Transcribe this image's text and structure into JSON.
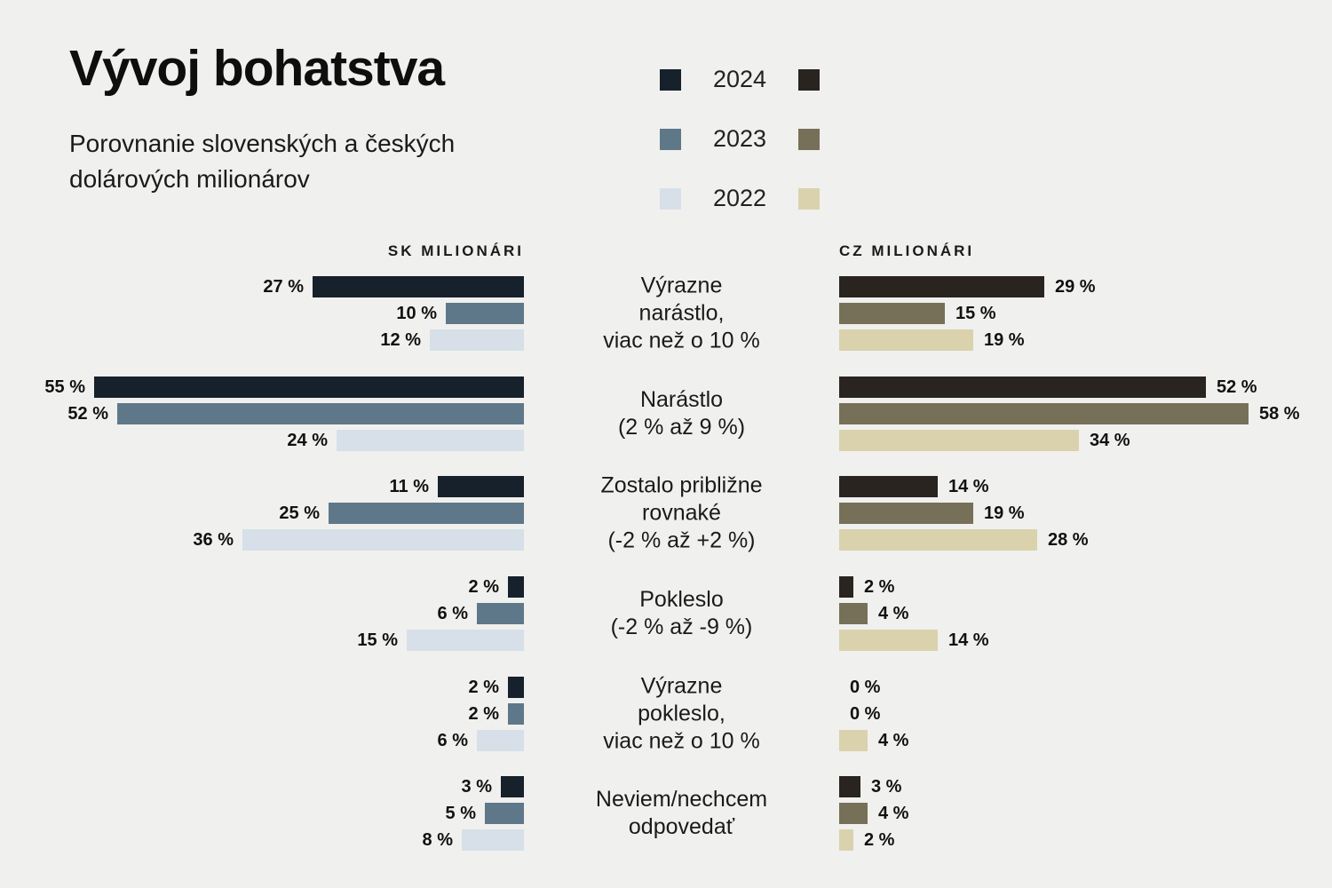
{
  "title": "Vývoj bohatstva",
  "subtitle": "Porovnanie slovenských a českých dolárových milionárov",
  "legend": {
    "years": [
      "2024",
      "2023",
      "2022"
    ]
  },
  "columns": {
    "sk": "SK MILIONÁRI",
    "cz": "CZ MILIONÁRI"
  },
  "colors": {
    "background": "#f0f0ee",
    "text": "#1a1a1a",
    "sk": {
      "2024": "#16212b",
      "2023": "#5f7889",
      "2022": "#d7e0e8"
    },
    "cz": {
      "2024": "#292420",
      "2023": "#777058",
      "2022": "#dad2ad"
    }
  },
  "groups": [
    {
      "lines": [
        "Výrazne",
        "narástlo,",
        "viac než o 10 %"
      ],
      "sk": [
        {
          "year": "2024",
          "value": 27,
          "label": "27 %"
        },
        {
          "year": "2023",
          "value": 10,
          "label": "10 %"
        },
        {
          "year": "2022",
          "value": 12,
          "label": "12 %"
        }
      ],
      "cz": [
        {
          "year": "2024",
          "value": 29,
          "label": "29 %"
        },
        {
          "year": "2023",
          "value": 15,
          "label": "15 %"
        },
        {
          "year": "2022",
          "value": 19,
          "label": "19 %"
        }
      ]
    },
    {
      "lines": [
        "Narástlo",
        "(2 % až 9 %)"
      ],
      "sk": [
        {
          "year": "2024",
          "value": 55,
          "label": "55 %"
        },
        {
          "year": "2023",
          "value": 52,
          "label": "52 %"
        },
        {
          "year": "2022",
          "value": 24,
          "label": "24 %"
        }
      ],
      "cz": [
        {
          "year": "2024",
          "value": 52,
          "label": "52 %"
        },
        {
          "year": "2023",
          "value": 58,
          "label": "58 %"
        },
        {
          "year": "2022",
          "value": 34,
          "label": "34 %"
        }
      ]
    },
    {
      "lines": [
        "Zostalo približne",
        "rovnaké",
        "(-2 % až +2 %)"
      ],
      "sk": [
        {
          "year": "2024",
          "value": 11,
          "label": "11 %"
        },
        {
          "year": "2023",
          "value": 25,
          "label": "25 %"
        },
        {
          "year": "2022",
          "value": 36,
          "label": "36 %"
        }
      ],
      "cz": [
        {
          "year": "2024",
          "value": 14,
          "label": "14 %"
        },
        {
          "year": "2023",
          "value": 19,
          "label": "19 %"
        },
        {
          "year": "2022",
          "value": 28,
          "label": "28 %"
        }
      ]
    },
    {
      "lines": [
        "Pokleslo",
        "(-2 % až -9 %)"
      ],
      "sk": [
        {
          "year": "2024",
          "value": 2,
          "label": "2 %"
        },
        {
          "year": "2023",
          "value": 6,
          "label": "6 %"
        },
        {
          "year": "2022",
          "value": 15,
          "label": "15 %"
        }
      ],
      "cz": [
        {
          "year": "2024",
          "value": 2,
          "label": "2 %"
        },
        {
          "year": "2023",
          "value": 4,
          "label": "4 %"
        },
        {
          "year": "2022",
          "value": 14,
          "label": "14 %"
        }
      ]
    },
    {
      "lines": [
        "Výrazne",
        "pokleslo,",
        "viac než o 10 %"
      ],
      "sk": [
        {
          "year": "2024",
          "value": 2,
          "label": "2 %"
        },
        {
          "year": "2023",
          "value": 2,
          "label": "2 %"
        },
        {
          "year": "2022",
          "value": 6,
          "label": "6 %"
        }
      ],
      "cz": [
        {
          "year": "2024",
          "value": 0,
          "label": "0 %"
        },
        {
          "year": "2023",
          "value": 0,
          "label": "0 %"
        },
        {
          "year": "2022",
          "value": 4,
          "label": "4 %"
        }
      ]
    },
    {
      "lines": [
        "Neviem/nechcem",
        "odpovedať"
      ],
      "sk": [
        {
          "year": "2024",
          "value": 3,
          "label": "3 %"
        },
        {
          "year": "2023",
          "value": 5,
          "label": "5 %"
        },
        {
          "year": "2022",
          "value": 8,
          "label": "8 %"
        }
      ],
      "cz": [
        {
          "year": "2024",
          "value": 3,
          "label": "3 %"
        },
        {
          "year": "2023",
          "value": 4,
          "label": "4 %"
        },
        {
          "year": "2022",
          "value": 2,
          "label": "2 %"
        }
      ]
    }
  ],
  "chart_data": {
    "type": "bar",
    "orientation": "horizontal",
    "title": "Vývoj bohatstva",
    "subtitle": "Porovnanie slovenských a českých dolárových milionárov",
    "groups_headers": [
      "SK MILIONÁRI",
      "CZ MILIONÁRI"
    ],
    "legend_entries": [
      "2024",
      "2023",
      "2022"
    ],
    "legend_position": "top-center",
    "value_unit": "%",
    "categories": [
      "Výrazne narástlo, viac než o 10 %",
      "Narástlo (2 % až 9 %)",
      "Zostalo približne rovnaké (-2 % až +2 %)",
      "Pokleslo (-2 % až -9 %)",
      "Výrazne pokleslo, viac než o 10 %",
      "Neviem/nechcem odpovedať"
    ],
    "series": [
      {
        "name": "SK 2024",
        "values": [
          27,
          55,
          11,
          2,
          2,
          3
        ]
      },
      {
        "name": "SK 2023",
        "values": [
          10,
          52,
          25,
          6,
          2,
          5
        ]
      },
      {
        "name": "SK 2022",
        "values": [
          12,
          24,
          36,
          15,
          6,
          8
        ]
      },
      {
        "name": "CZ 2024",
        "values": [
          29,
          52,
          14,
          2,
          0,
          3
        ]
      },
      {
        "name": "CZ 2023",
        "values": [
          15,
          58,
          19,
          4,
          0,
          4
        ]
      },
      {
        "name": "CZ 2022",
        "values": [
          19,
          34,
          28,
          14,
          4,
          2
        ]
      }
    ],
    "xlim": [
      0,
      60
    ],
    "grid": false
  }
}
